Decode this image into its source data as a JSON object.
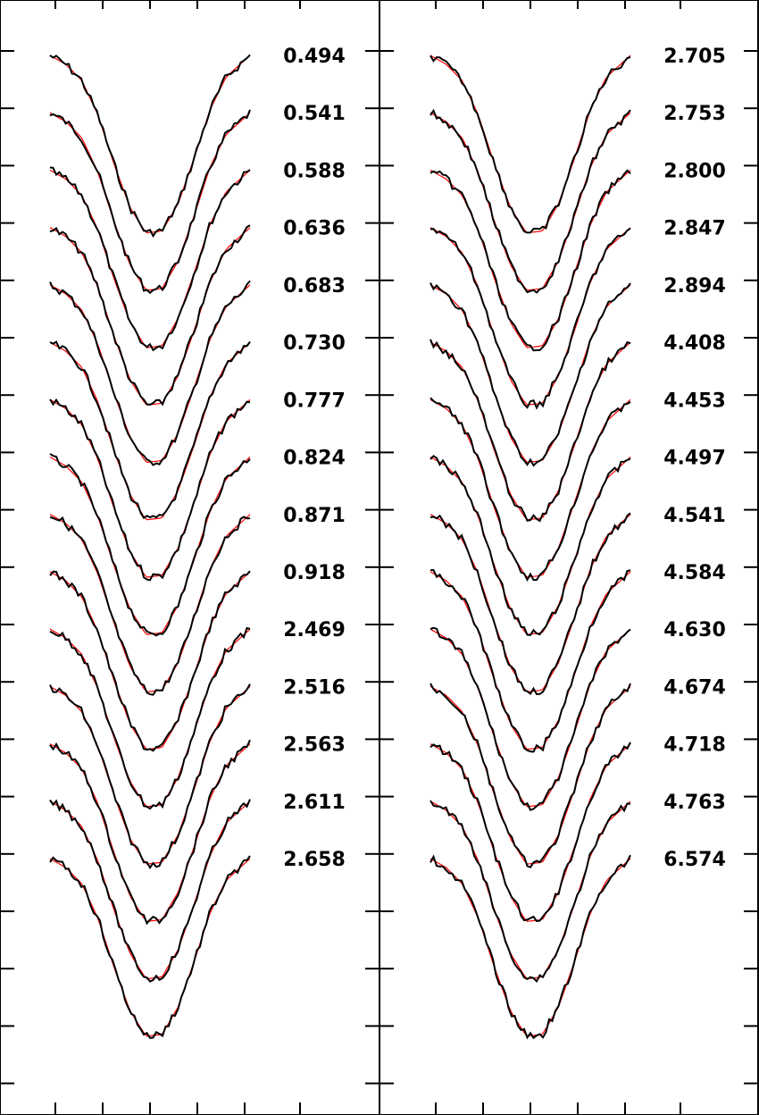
{
  "chart_data": [
    {
      "type": "line",
      "panel": "left",
      "title": "",
      "xlabel": "",
      "ylabel": "",
      "x": [
        -1,
        -0.84,
        -0.68,
        -0.52,
        -0.36,
        -0.2,
        -0.04,
        0.12,
        0.28,
        0.44,
        0.6,
        0.76,
        0.92,
        1
      ],
      "profile_model": [
        0,
        0.05,
        0.14,
        0.33,
        0.6,
        0.84,
        0.98,
        0.97,
        0.82,
        0.57,
        0.3,
        0.12,
        0.04,
        0
      ],
      "profile_depth": 0.78,
      "offset_step": 0.247,
      "series": [
        {
          "label": "0.494"
        },
        {
          "label": "0.541"
        },
        {
          "label": "0.588"
        },
        {
          "label": "0.636"
        },
        {
          "label": "0.683"
        },
        {
          "label": "0.730"
        },
        {
          "label": "0.777"
        },
        {
          "label": "0.824"
        },
        {
          "label": "0.871"
        },
        {
          "label": "0.918"
        },
        {
          "label": "2.469"
        },
        {
          "label": "2.516"
        },
        {
          "label": "2.563"
        },
        {
          "label": "2.611"
        },
        {
          "label": "2.658"
        }
      ],
      "observed_color": "#000000",
      "model_color": "#ff0000",
      "grid": false,
      "legend": "none"
    },
    {
      "type": "line",
      "panel": "right",
      "title": "",
      "xlabel": "",
      "ylabel": "",
      "x": [
        -1,
        -0.84,
        -0.68,
        -0.52,
        -0.36,
        -0.2,
        -0.04,
        0.12,
        0.28,
        0.44,
        0.6,
        0.76,
        0.92,
        1
      ],
      "profile_model": [
        0,
        0.05,
        0.14,
        0.33,
        0.6,
        0.84,
        0.98,
        0.97,
        0.82,
        0.57,
        0.3,
        0.12,
        0.04,
        0
      ],
      "profile_depth": 0.78,
      "offset_step": 0.247,
      "series": [
        {
          "label": "2.705"
        },
        {
          "label": "2.753"
        },
        {
          "label": "2.800"
        },
        {
          "label": "2.847"
        },
        {
          "label": "2.894"
        },
        {
          "label": "4.408"
        },
        {
          "label": "4.453"
        },
        {
          "label": "4.497"
        },
        {
          "label": "4.541"
        },
        {
          "label": "4.584"
        },
        {
          "label": "4.630"
        },
        {
          "label": "4.674"
        },
        {
          "label": "4.718"
        },
        {
          "label": "4.763"
        },
        {
          "label": "6.574"
        }
      ],
      "observed_color": "#000000",
      "model_color": "#ff0000",
      "grid": false,
      "legend": "none"
    }
  ]
}
